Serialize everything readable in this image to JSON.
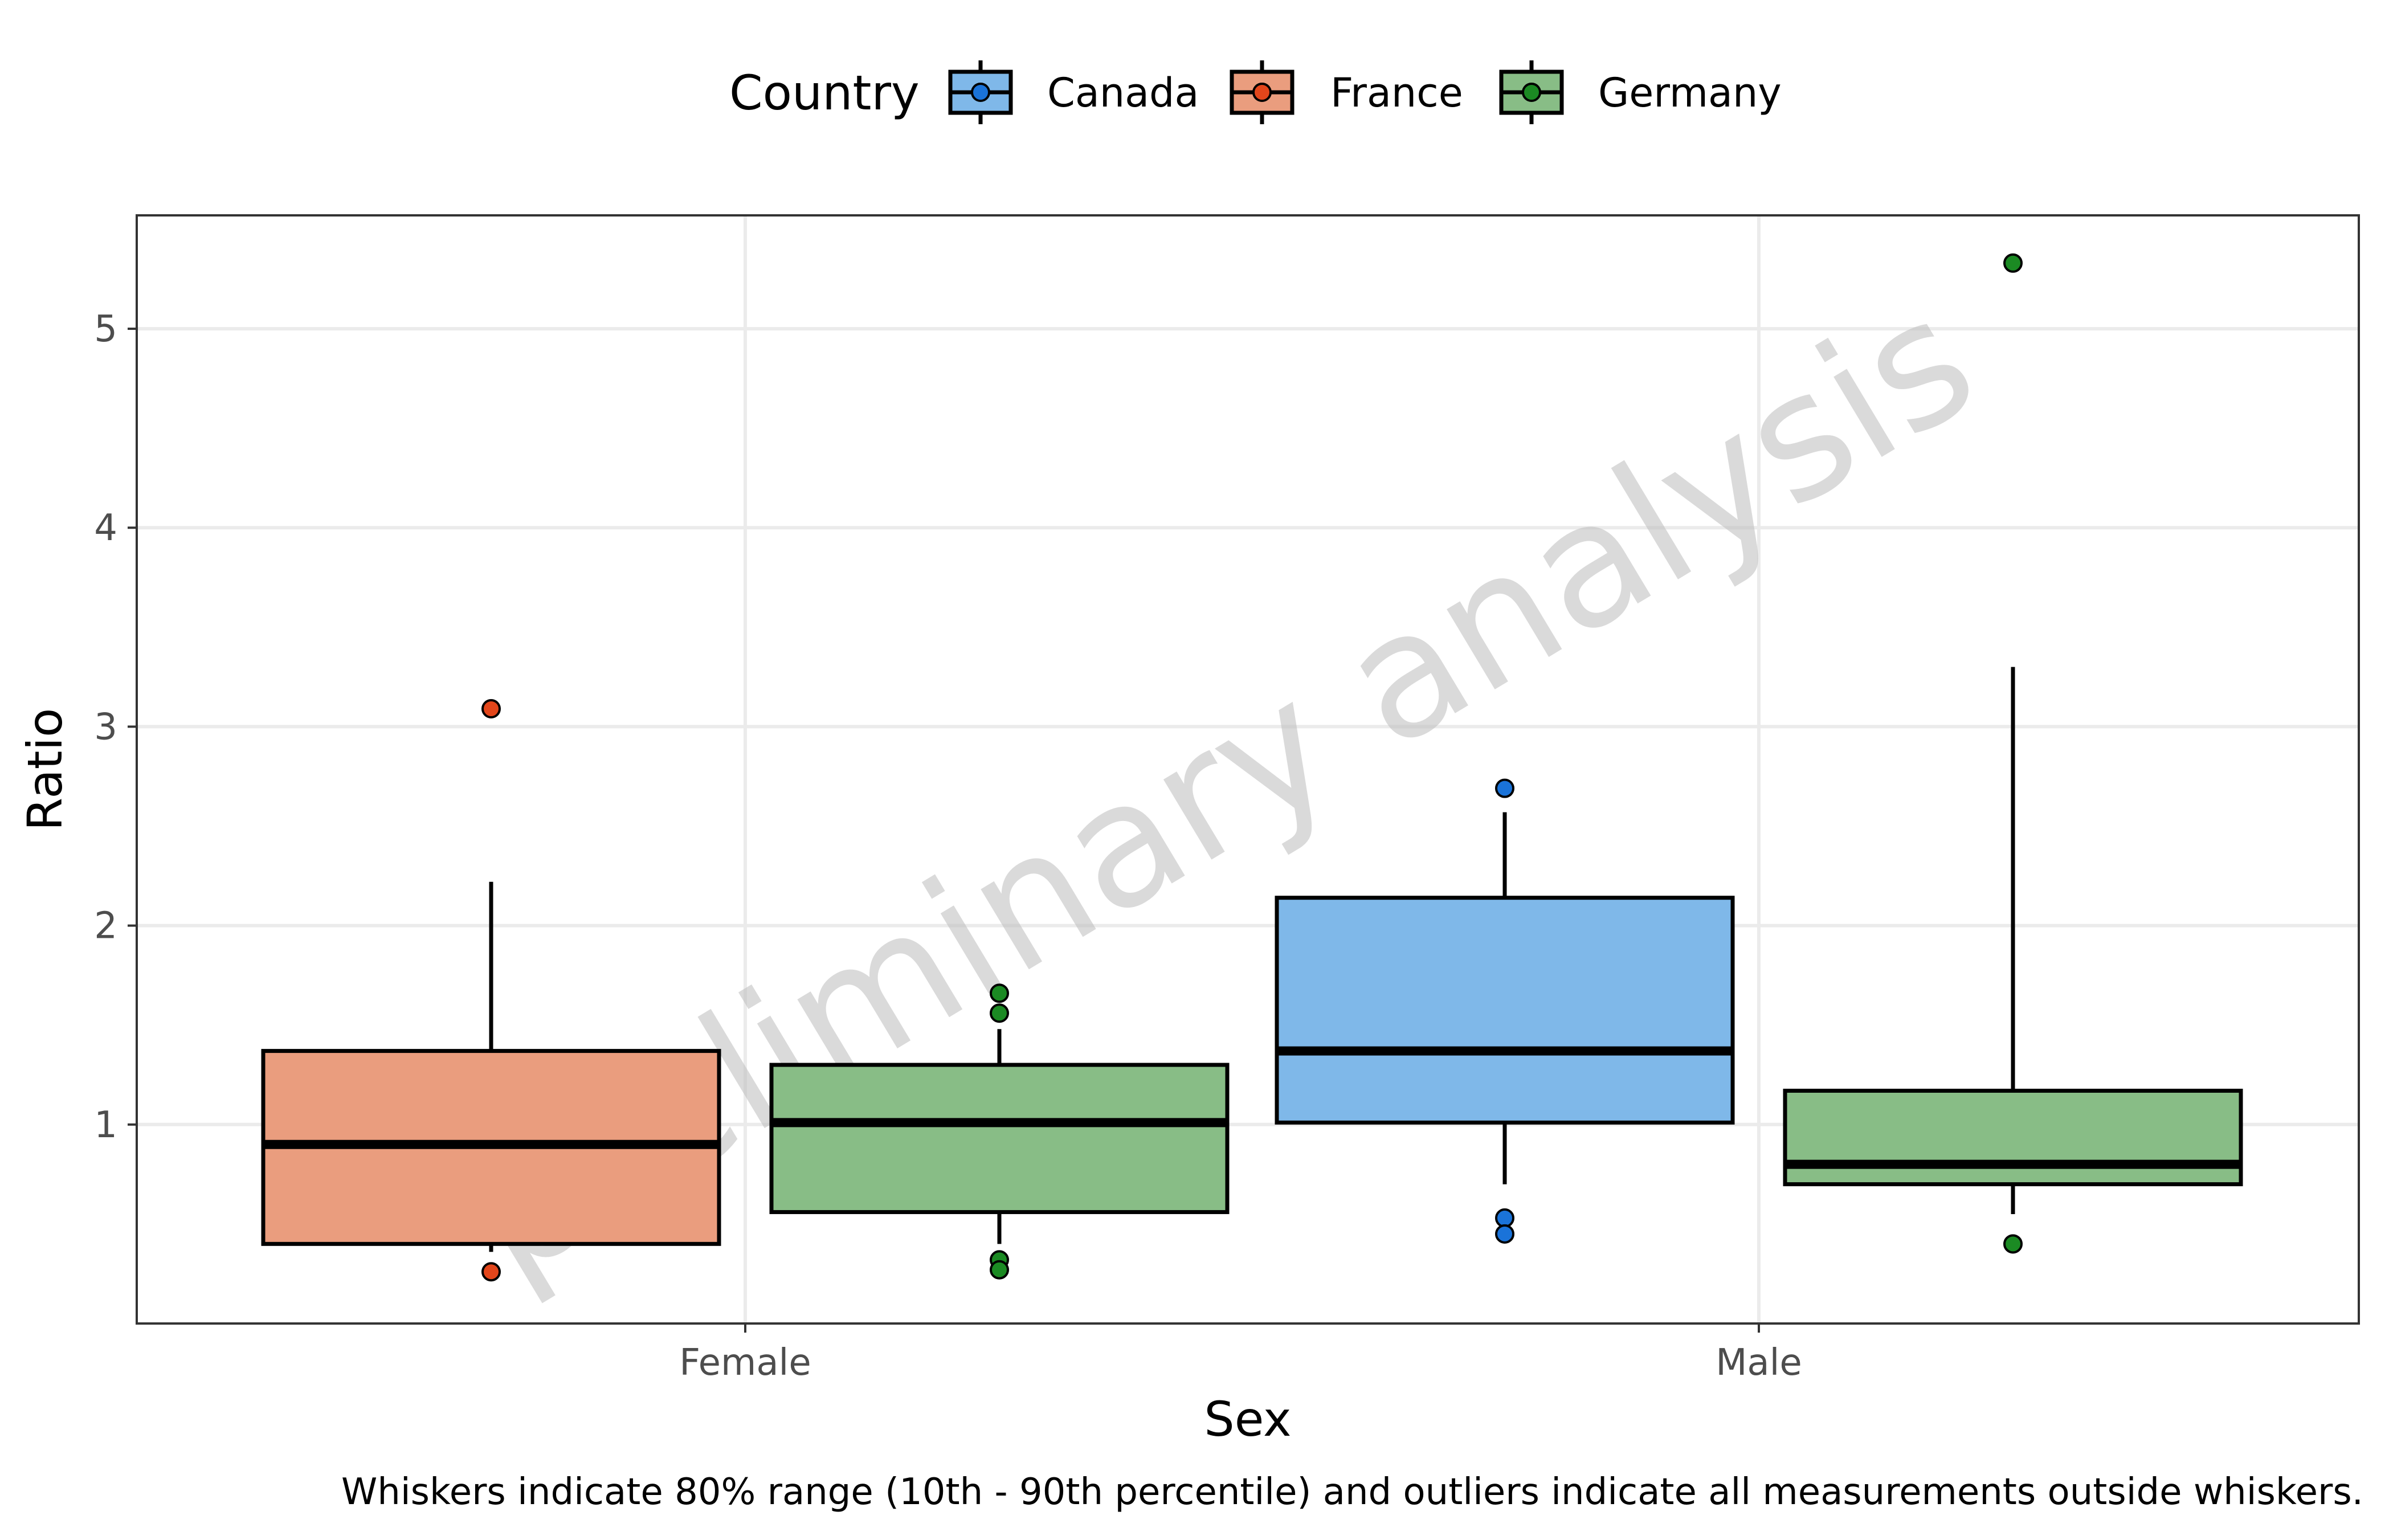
{
  "chart_data": {
    "type": "boxplot",
    "title": "",
    "xlabel": "Sex",
    "ylabel": "Ratio",
    "categories": [
      "Female",
      "Male"
    ],
    "ylim": [
      0,
      5.57
    ],
    "yticks": [
      1,
      2,
      3,
      4,
      5
    ],
    "legend": {
      "title": "Country",
      "position": "top",
      "entries": [
        "Canada",
        "France",
        "Germany"
      ]
    },
    "colors": {
      "Canada": "#7fb8e9",
      "France": "#ea9d7e",
      "Germany": "#88bd86"
    },
    "point_colors": {
      "Canada": "#1a73d9",
      "France": "#e3461b",
      "Germany": "#1b8a23"
    },
    "grid": true,
    "boxes": [
      {
        "category": "Female",
        "group": "France",
        "whisker_low": 0.36,
        "q1": 0.4,
        "median": 0.9,
        "q3": 1.37,
        "whisker_high": 2.22,
        "outliers": [
          3.09,
          0.26
        ]
      },
      {
        "category": "Female",
        "group": "Germany",
        "whisker_low": 0.4,
        "q1": 0.56,
        "median": 1.01,
        "q3": 1.3,
        "whisker_high": 1.48,
        "outliers": [
          1.66,
          1.56,
          0.32,
          0.27
        ]
      },
      {
        "category": "Male",
        "group": "Canada",
        "whisker_low": 0.7,
        "q1": 1.01,
        "median": 1.37,
        "q3": 2.14,
        "whisker_high": 2.57,
        "outliers": [
          2.69,
          0.53,
          0.45
        ]
      },
      {
        "category": "Male",
        "group": "Germany",
        "whisker_low": 0.55,
        "q1": 0.7,
        "median": 0.8,
        "q3": 1.17,
        "whisker_high": 3.3,
        "outliers": [
          5.33,
          0.4
        ]
      }
    ],
    "caption": "Whiskers indicate 80% range (10th - 90th percentile) and outliers indicate all measurements outside whiskers.",
    "watermark": "preliminary analysis"
  }
}
